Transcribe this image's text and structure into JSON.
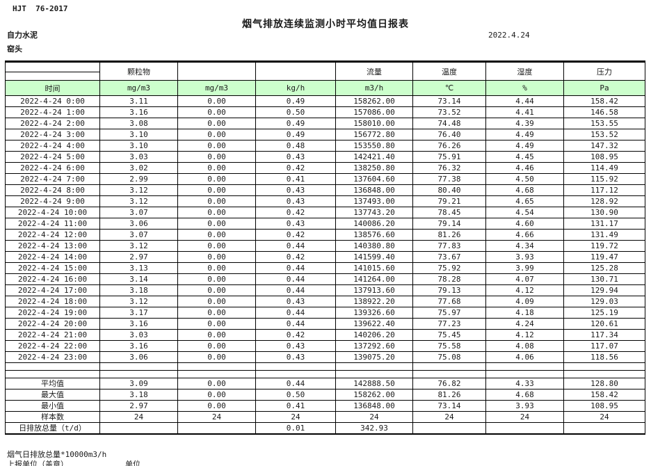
{
  "header": {
    "standard": "HJT  76-2017",
    "title": "烟气排放连续监测小时平均值日报表",
    "company": "自力水泥",
    "location": "窑头",
    "date": "2022.4.24"
  },
  "colors": {
    "header_green": "#ccffcc"
  },
  "table": {
    "group_headers": [
      "",
      "颗粒物",
      "",
      "",
      "流量",
      "温度",
      "湿度",
      "压力"
    ],
    "unit_headers": [
      "时间",
      "mg/m3",
      "mg/m3",
      "kg/h",
      "m3/h",
      "℃",
      "%",
      "Pa"
    ],
    "rows": [
      [
        "2022-4-24 0:00",
        "3.11",
        "0.00",
        "0.49",
        "158262.00",
        "73.14",
        "4.44",
        "158.42"
      ],
      [
        "2022-4-24 1:00",
        "3.16",
        "0.00",
        "0.50",
        "157086.00",
        "73.52",
        "4.41",
        "146.58"
      ],
      [
        "2022-4-24 2:00",
        "3.08",
        "0.00",
        "0.49",
        "158010.00",
        "74.48",
        "4.39",
        "153.55"
      ],
      [
        "2022-4-24 3:00",
        "3.10",
        "0.00",
        "0.49",
        "156772.80",
        "76.40",
        "4.49",
        "153.52"
      ],
      [
        "2022-4-24 4:00",
        "3.10",
        "0.00",
        "0.48",
        "153550.80",
        "76.26",
        "4.49",
        "147.32"
      ],
      [
        "2022-4-24 5:00",
        "3.03",
        "0.00",
        "0.43",
        "142421.40",
        "75.91",
        "4.45",
        "108.95"
      ],
      [
        "2022-4-24 6:00",
        "3.02",
        "0.00",
        "0.42",
        "138250.80",
        "76.32",
        "4.46",
        "114.49"
      ],
      [
        "2022-4-24 7:00",
        "2.99",
        "0.00",
        "0.41",
        "137604.60",
        "77.38",
        "4.50",
        "115.92"
      ],
      [
        "2022-4-24 8:00",
        "3.12",
        "0.00",
        "0.43",
        "136848.00",
        "80.40",
        "4.68",
        "117.12"
      ],
      [
        "2022-4-24 9:00",
        "3.12",
        "0.00",
        "0.43",
        "137493.00",
        "79.21",
        "4.65",
        "128.92"
      ],
      [
        "2022-4-24 10:00",
        "3.07",
        "0.00",
        "0.42",
        "137743.20",
        "78.45",
        "4.54",
        "130.90"
      ],
      [
        "2022-4-24 11:00",
        "3.06",
        "0.00",
        "0.43",
        "140086.20",
        "79.14",
        "4.60",
        "131.17"
      ],
      [
        "2022-4-24 12:00",
        "3.07",
        "0.00",
        "0.42",
        "138576.60",
        "81.26",
        "4.66",
        "131.49"
      ],
      [
        "2022-4-24 13:00",
        "3.12",
        "0.00",
        "0.44",
        "140380.80",
        "77.83",
        "4.34",
        "119.72"
      ],
      [
        "2022-4-24 14:00",
        "2.97",
        "0.00",
        "0.42",
        "141599.40",
        "73.67",
        "3.93",
        "119.47"
      ],
      [
        "2022-4-24 15:00",
        "3.13",
        "0.00",
        "0.44",
        "141015.60",
        "75.92",
        "3.99",
        "125.28"
      ],
      [
        "2022-4-24 16:00",
        "3.14",
        "0.00",
        "0.44",
        "141264.00",
        "78.28",
        "4.07",
        "130.71"
      ],
      [
        "2022-4-24 17:00",
        "3.18",
        "0.00",
        "0.44",
        "137913.60",
        "79.13",
        "4.12",
        "129.94"
      ],
      [
        "2022-4-24 18:00",
        "3.12",
        "0.00",
        "0.43",
        "138922.20",
        "77.68",
        "4.09",
        "129.03"
      ],
      [
        "2022-4-24 19:00",
        "3.17",
        "0.00",
        "0.44",
        "139326.60",
        "75.97",
        "4.18",
        "125.19"
      ],
      [
        "2022-4-24 20:00",
        "3.16",
        "0.00",
        "0.44",
        "139622.40",
        "77.23",
        "4.24",
        "120.61"
      ],
      [
        "2022-4-24 21:00",
        "3.03",
        "0.00",
        "0.42",
        "140206.20",
        "75.45",
        "4.12",
        "117.34"
      ],
      [
        "2022-4-24 22:00",
        "3.16",
        "0.00",
        "0.43",
        "137292.60",
        "75.58",
        "4.08",
        "117.07"
      ],
      [
        "2022-4-24 23:00",
        "3.06",
        "0.00",
        "0.43",
        "139075.20",
        "75.08",
        "4.06",
        "118.56"
      ]
    ],
    "summary": [
      [
        "平均值",
        "3.09",
        "0.00",
        "0.44",
        "142888.50",
        "76.82",
        "4.33",
        "128.80"
      ],
      [
        "最大值",
        "3.18",
        "0.00",
        "0.50",
        "158262.00",
        "81.26",
        "4.68",
        "158.42"
      ],
      [
        "最小值",
        "2.97",
        "0.00",
        "0.41",
        "136848.00",
        "73.14",
        "3.93",
        "108.95"
      ],
      [
        "样本数",
        "24",
        "24",
        "24",
        "24",
        "24",
        "24",
        "24"
      ],
      [
        "日排放总量（t/d）",
        "",
        "",
        "0.01",
        "342.93",
        "",
        "",
        ""
      ]
    ]
  },
  "footer": {
    "note": "烟气日排放总量*10000m3/h",
    "report_unit_label": "上报单位（盖章）",
    "unit_label": "单位"
  }
}
